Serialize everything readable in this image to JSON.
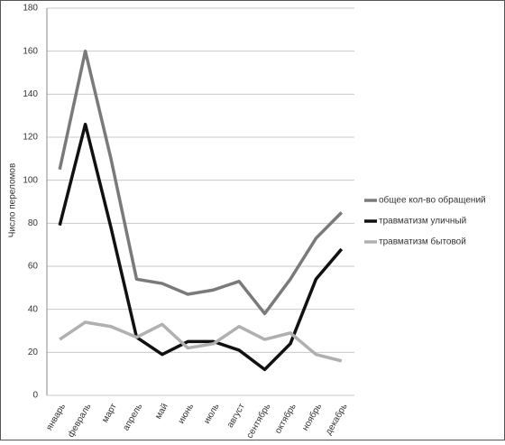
{
  "chart_data": {
    "type": "line",
    "y_label": "Число переломов",
    "categories": [
      "январь",
      "февраль",
      "март",
      "апрель",
      "май",
      "июнь",
      "июль",
      "август",
      "сентябрь",
      "октябрь",
      "ноябрь",
      "декабрь"
    ],
    "series": [
      {
        "name": "общее кол-во обращений",
        "color": "#7a7a7a",
        "values": [
          105,
          160,
          110,
          54,
          52,
          47,
          49,
          53,
          38,
          54,
          73,
          85
        ]
      },
      {
        "name": "травматизм уличный",
        "color": "#111111",
        "values": [
          79,
          126,
          78,
          27,
          19,
          25,
          25,
          21,
          12,
          24,
          54,
          68
        ]
      },
      {
        "name": "травматизм бытовой",
        "color": "#b0b0b0",
        "values": [
          26,
          34,
          32,
          27,
          33,
          22,
          24,
          32,
          26,
          29,
          19,
          16
        ]
      }
    ],
    "ylim": [
      0,
      180
    ],
    "yticks": [
      0,
      20,
      40,
      60,
      80,
      100,
      120,
      140,
      160,
      180
    ],
    "grid": true,
    "legend": "right"
  }
}
